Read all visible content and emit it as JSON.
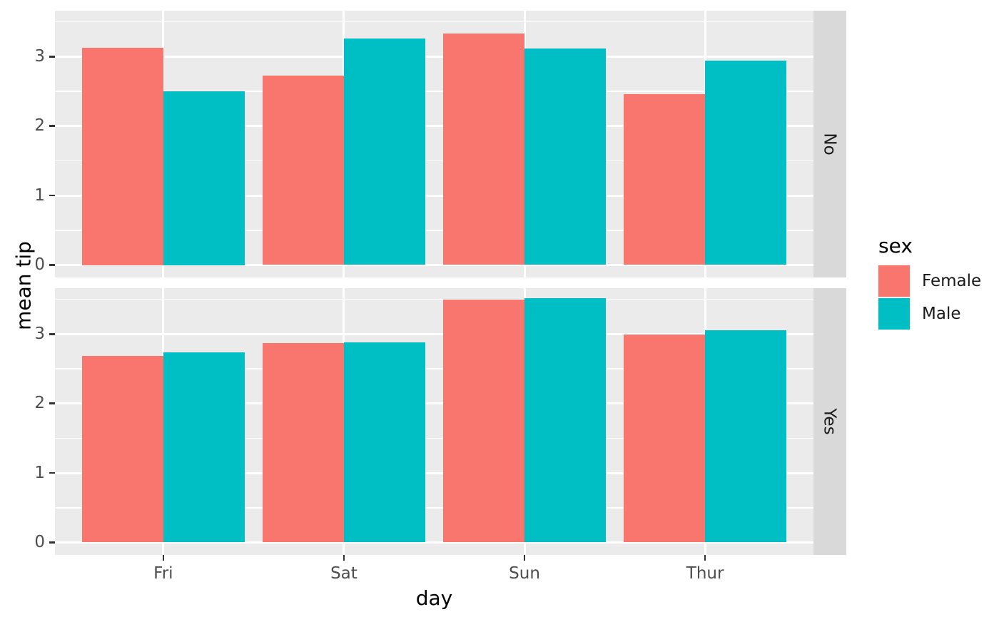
{
  "chart_data": {
    "type": "bar",
    "title": "",
    "xlabel": "day",
    "ylabel": "mean tip",
    "categories": [
      "Fri",
      "Sat",
      "Sun",
      "Thur"
    ],
    "facets": [
      {
        "label": "No",
        "series": [
          {
            "name": "Female",
            "color": "#F8766D",
            "values": [
              3.125,
              2.724,
              3.329,
              2.46
            ]
          },
          {
            "name": "Male",
            "color": "#00BFC4",
            "values": [
              2.5,
              3.257,
              3.115,
              2.942
            ]
          }
        ]
      },
      {
        "label": "Yes",
        "series": [
          {
            "name": "Female",
            "color": "#F8766D",
            "values": [
              2.683,
              2.869,
              3.5,
              2.99
            ]
          },
          {
            "name": "Male",
            "color": "#00BFC4",
            "values": [
              2.741,
              2.879,
              3.521,
              3.058
            ]
          }
        ]
      }
    ],
    "y_ticks": [
      "0",
      "1",
      "2",
      "3"
    ],
    "y_minor_ticks": [
      0.5,
      1.5,
      2.5,
      3.5
    ],
    "ylim": [
      -0.18,
      3.66
    ],
    "grid": "major-and-minor-horizontal, major-vertical-at-categories",
    "legend_position": "right",
    "legend": {
      "title": "sex",
      "entries": [
        {
          "label": "Female",
          "color": "#F8766D"
        },
        {
          "label": "Male",
          "color": "#00BFC4"
        }
      ]
    },
    "colors": {
      "female": "#F8766D",
      "male": "#00BFC4",
      "panel_background": "#EBEBEB",
      "strip_background": "#D9D9D9",
      "gridline": "#FFFFFF",
      "tick_mark": "#333333",
      "tick_label": "#4D4D4D",
      "title_text": "#000000"
    }
  }
}
